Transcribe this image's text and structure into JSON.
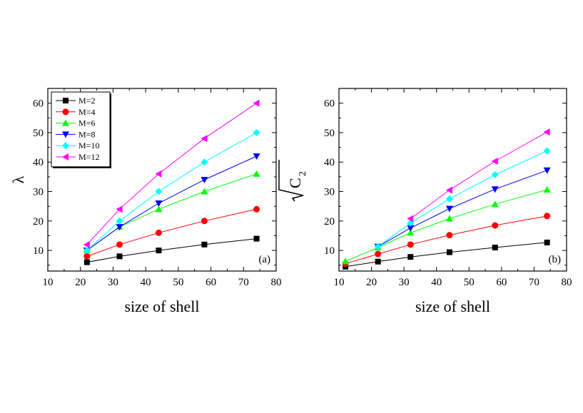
{
  "figure": {
    "panels": [
      "(a)",
      "(b)"
    ]
  },
  "chart_data": [
    {
      "type": "line",
      "panel_label": "(a)",
      "xlabel": "size of shell",
      "ylabel": "λ",
      "xlim": [
        10,
        80
      ],
      "ylim": [
        3,
        65
      ],
      "xticks": [
        10,
        20,
        30,
        40,
        50,
        60,
        70,
        80
      ],
      "yticks": [
        10,
        20,
        30,
        40,
        50,
        60
      ],
      "legend": "top-left",
      "grid": false,
      "x": [
        22,
        32,
        44,
        58,
        74
      ],
      "series": [
        {
          "name": "M=2",
          "color": "#000000",
          "marker": "square",
          "values": [
            6,
            8,
            10,
            12,
            14
          ]
        },
        {
          "name": "M=4",
          "color": "#ff0000",
          "marker": "circle",
          "values": [
            8,
            12,
            16,
            20,
            24
          ]
        },
        {
          "name": "M=6",
          "color": "#00ff00",
          "marker": "triangle-up",
          "values": [
            10,
            18,
            24,
            30,
            36
          ]
        },
        {
          "name": "M=8",
          "color": "#0000ff",
          "marker": "triangle-down",
          "values": [
            10,
            18,
            26,
            34,
            42
          ]
        },
        {
          "name": "M=10",
          "color": "#00ffff",
          "marker": "diamond",
          "values": [
            10,
            20,
            30,
            40,
            50
          ]
        },
        {
          "name": "M=12",
          "color": "#ff00ff",
          "marker": "triangle-left",
          "values": [
            12,
            24,
            36,
            48,
            60
          ]
        }
      ]
    },
    {
      "type": "line",
      "panel_label": "(b)",
      "xlabel": "size of shell",
      "ylabel": "√C2",
      "ylabel_symbol": "C",
      "ylabel_subscript": "2",
      "xlim": [
        10,
        80
      ],
      "ylim": [
        3,
        65
      ],
      "xticks": [
        10,
        20,
        30,
        40,
        50,
        60,
        70,
        80
      ],
      "yticks": [
        10,
        20,
        30,
        40,
        50,
        60
      ],
      "grid": false,
      "series": [
        {
          "name": "M=2",
          "color": "#000000",
          "marker": "square",
          "x": [
            12,
            22,
            32,
            44,
            58,
            74
          ],
          "values": [
            4.5,
            6.2,
            7.8,
            9.4,
            11,
            12.7
          ]
        },
        {
          "name": "M=4",
          "color": "#ff0000",
          "marker": "circle",
          "x": [
            12,
            22,
            32,
            44,
            58,
            74
          ],
          "values": [
            5.5,
            8.8,
            12,
            15.2,
            18.5,
            21.7
          ]
        },
        {
          "name": "M=6",
          "color": "#00ff00",
          "marker": "triangle-up",
          "x": [
            12,
            22,
            32,
            44,
            58,
            74
          ],
          "values": [
            6.3,
            11,
            16,
            20.8,
            25.7,
            30.6
          ]
        },
        {
          "name": "M=8",
          "color": "#0000ff",
          "marker": "triangle-down",
          "x": [
            22,
            32,
            44,
            58,
            74
          ],
          "values": [
            11.3,
            17.6,
            24.2,
            30.8,
            37.2
          ]
        },
        {
          "name": "M=10",
          "color": "#00ffff",
          "marker": "diamond",
          "x": [
            22,
            32,
            44,
            58,
            74
          ],
          "values": [
            11.3,
            19.3,
            27.5,
            35.7,
            43.8
          ]
        },
        {
          "name": "M=12",
          "color": "#ff00ff",
          "marker": "triangle-left",
          "x": [
            32,
            44,
            58,
            74
          ],
          "values": [
            20.8,
            30.5,
            40.3,
            50.2
          ]
        }
      ]
    }
  ]
}
